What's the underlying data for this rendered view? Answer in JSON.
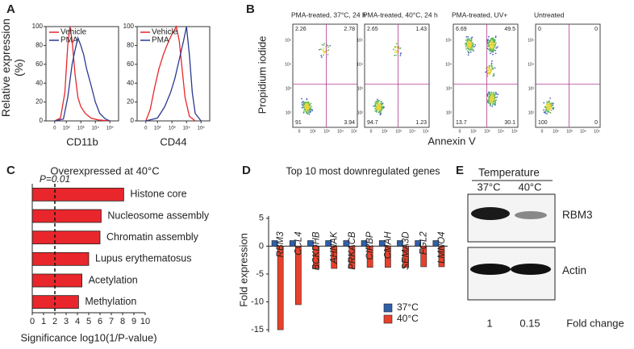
{
  "panel_labels": [
    "A",
    "B",
    "C",
    "D",
    "E"
  ],
  "chart_data": [
    {
      "type": "line",
      "ylabel": "Relative expression (%)",
      "xlabel": "CD11b",
      "ylim": [
        0,
        100
      ],
      "yticks": [
        0,
        20,
        40,
        60,
        80,
        100
      ],
      "xlim": [
        0.6,
        5.6
      ],
      "xticks": [
        {
          "value": 1.2,
          "label": "0"
        },
        {
          "value": 2,
          "label": "10²"
        },
        {
          "value": 3,
          "label": "10³"
        },
        {
          "value": 4,
          "label": "10⁴"
        },
        {
          "value": 5,
          "label": "10⁵"
        }
      ],
      "series": [
        {
          "name": "Vehicle",
          "color": "#e8262b",
          "x": [
            1.2,
            1.6,
            1.9,
            2.1,
            2.25,
            2.4,
            2.6,
            2.8,
            3.0,
            3.3,
            3.7,
            4.2,
            5
          ],
          "values": [
            0,
            3,
            30,
            80,
            100,
            85,
            50,
            25,
            15,
            8,
            3,
            1,
            0
          ]
        },
        {
          "name": "PMA",
          "color": "#2b3990",
          "x": [
            1.2,
            1.8,
            2.1,
            2.4,
            2.6,
            2.8,
            3.0,
            3.2,
            3.4,
            3.7,
            4.0,
            4.3,
            4.7,
            5
          ],
          "values": [
            0,
            2,
            25,
            60,
            75,
            88,
            80,
            70,
            55,
            38,
            20,
            8,
            2,
            0
          ]
        }
      ]
    },
    {
      "type": "line",
      "xlabel": "CD44",
      "ylim": [
        0,
        100
      ],
      "yticks": [
        0,
        20,
        40,
        60,
        80,
        100
      ],
      "xlim": [
        0.6,
        5.6
      ],
      "xticks": [
        {
          "value": 1.2,
          "label": "0"
        },
        {
          "value": 2,
          "label": "10²"
        },
        {
          "value": 3,
          "label": "10³"
        },
        {
          "value": 4,
          "label": "10⁴"
        },
        {
          "value": 5,
          "label": "10⁵"
        }
      ],
      "series": [
        {
          "name": "Vehicle",
          "color": "#e8262b",
          "x": [
            1.2,
            1.5,
            1.8,
            2.1,
            2.4,
            2.7,
            3.0,
            3.3,
            3.5,
            3.7,
            3.9,
            4.2,
            4.6
          ],
          "values": [
            0,
            12,
            35,
            55,
            70,
            82,
            92,
            100,
            85,
            55,
            25,
            5,
            0
          ]
        },
        {
          "name": "PMA",
          "color": "#2b3990",
          "x": [
            1.2,
            2.0,
            2.5,
            2.9,
            3.2,
            3.5,
            3.8,
            4.0,
            4.2,
            4.4,
            4.6,
            5.0
          ],
          "values": [
            0,
            3,
            15,
            30,
            45,
            65,
            85,
            100,
            70,
            30,
            8,
            0
          ]
        }
      ]
    },
    {
      "type": "hbar",
      "title": "Overexpressed at 40°C",
      "xlabel": "Significance log10(1/P-value)",
      "color": "#e8262b",
      "categories": [
        "Histone core",
        "Nucleosome assembly",
        "Chromatin assembly",
        "Lupus erythematosus",
        "Acetylation",
        "Methylation"
      ],
      "values": [
        8.1,
        6.1,
        6.0,
        5.0,
        4.4,
        4.1
      ],
      "xlim": [
        0,
        10
      ],
      "xticks": [
        0,
        1,
        2,
        3,
        4,
        5,
        6,
        7,
        8,
        9,
        10
      ],
      "reference": {
        "value": 2,
        "label": "P=0.01"
      }
    },
    {
      "type": "grouped_bar",
      "title": "Top 10 most downregulated genes",
      "ylabel": "Fold expression",
      "categories": [
        "RBM3",
        "CCL4",
        "BCKDHB",
        "AHNAK",
        "PRKACB",
        "CIRBP",
        "CMAH",
        "SEMA3D",
        "FGL2",
        "LMNO4"
      ],
      "series": [
        {
          "name": "37°C",
          "color": "#2f5fa8",
          "values": [
            1,
            1,
            1,
            1,
            1,
            1,
            1,
            1,
            1,
            1
          ]
        },
        {
          "name": "40°C",
          "color": "#e8412b",
          "values": [
            -15,
            -10.5,
            -4,
            -4,
            -4,
            -3.8,
            -3.8,
            -3.8,
            -3.7,
            -3.7
          ]
        }
      ],
      "ylim": [
        -16,
        7
      ],
      "yticks": [
        -15,
        -10,
        -5,
        0,
        5
      ]
    }
  ],
  "flow": {
    "ylabel": "Propidium iodide",
    "xlabel": "Annexin V",
    "yticks": [
      "10²",
      "10³",
      "10⁴",
      "10⁵"
    ],
    "xticks": [
      "0",
      "10²",
      "10³",
      "10⁴",
      "10⁵"
    ],
    "panels": [
      {
        "title": "PMA-treated, 37°C, 24 h",
        "quadrants": [
          2.26,
          2.78,
          91,
          3.94
        ]
      },
      {
        "title": "PMA-treated, 40°C, 24 h",
        "quadrants": [
          2.65,
          1.43,
          94.7,
          1.23
        ]
      },
      {
        "title": "PMA-treated, UV+",
        "quadrants": [
          6.69,
          49.5,
          13.7,
          30.1
        ]
      },
      {
        "title": "Untreated",
        "quadrants": [
          0,
          0,
          100,
          0
        ]
      }
    ]
  },
  "blot": {
    "header": "Temperature",
    "lanes": [
      "37°C",
      "40°C"
    ],
    "rows": [
      "RBM3",
      "Actin"
    ],
    "fold_values": [
      "1",
      "0.15"
    ],
    "fold_label": "Fold change"
  }
}
